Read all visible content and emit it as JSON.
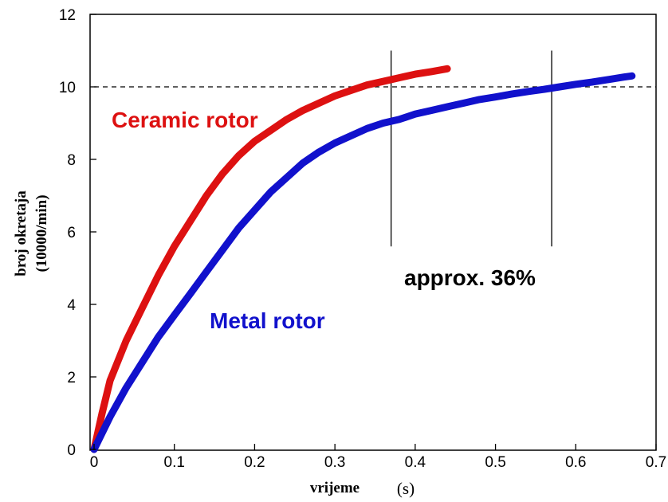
{
  "chart_data": {
    "type": "line",
    "xlabel": "vrijeme",
    "xunit": "(s)",
    "ylabel_lines": [
      "broj okretaja",
      "(10000/min)"
    ],
    "xlim": [
      0,
      0.7
    ],
    "ylim": [
      0,
      12
    ],
    "xticks": [
      0,
      0.1,
      0.2,
      0.3,
      0.4,
      0.5,
      0.6,
      0.7
    ],
    "xtick_labels": [
      "0",
      "0.1",
      "0.2",
      "0.3",
      "0.4",
      "0.5",
      "0.6",
      "0.7"
    ],
    "yticks": [
      0,
      2,
      4,
      6,
      8,
      10,
      12
    ],
    "ytick_labels": [
      "0",
      "2",
      "4",
      "6",
      "8",
      "10",
      "12"
    ],
    "grid": false,
    "reference_line": {
      "y": 10,
      "style": "dashed"
    },
    "marker_lines": [
      {
        "x": 0.37,
        "y_from": 5.6,
        "y_to": 11.0
      },
      {
        "x": 0.57,
        "y_from": 5.6,
        "y_to": 11.0
      }
    ],
    "series": [
      {
        "name": "Ceramic rotor",
        "color": "#dd1111",
        "x": [
          0,
          0.01,
          0.02,
          0.04,
          0.06,
          0.08,
          0.1,
          0.12,
          0.14,
          0.16,
          0.18,
          0.2,
          0.22,
          0.24,
          0.26,
          0.28,
          0.3,
          0.32,
          0.34,
          0.36,
          0.38,
          0.4,
          0.42,
          0.44
        ],
        "y": [
          0,
          1.0,
          1.9,
          3.0,
          3.9,
          4.8,
          5.6,
          6.3,
          7.0,
          7.6,
          8.1,
          8.5,
          8.8,
          9.1,
          9.35,
          9.55,
          9.75,
          9.9,
          10.05,
          10.15,
          10.25,
          10.35,
          10.42,
          10.5
        ]
      },
      {
        "name": "Metal rotor",
        "color": "#1111cc",
        "x": [
          0,
          0.02,
          0.04,
          0.06,
          0.08,
          0.1,
          0.12,
          0.14,
          0.16,
          0.18,
          0.2,
          0.22,
          0.24,
          0.26,
          0.28,
          0.3,
          0.32,
          0.34,
          0.36,
          0.38,
          0.4,
          0.42,
          0.44,
          0.46,
          0.48,
          0.5,
          0.52,
          0.54,
          0.56,
          0.58,
          0.6,
          0.62,
          0.64,
          0.66,
          0.67
        ],
        "y": [
          0,
          0.9,
          1.7,
          2.4,
          3.1,
          3.7,
          4.3,
          4.9,
          5.5,
          6.1,
          6.6,
          7.1,
          7.5,
          7.9,
          8.2,
          8.45,
          8.65,
          8.85,
          9.0,
          9.1,
          9.25,
          9.35,
          9.45,
          9.55,
          9.65,
          9.72,
          9.8,
          9.87,
          9.93,
          10.0,
          10.07,
          10.13,
          10.2,
          10.27,
          10.3
        ]
      }
    ],
    "annotations": [
      {
        "text": "Ceramic rotor",
        "color": "#dd1111"
      },
      {
        "text": "Metal rotor",
        "color": "#1111cc"
      },
      {
        "text": "approx. 36%",
        "color": "#000000"
      }
    ]
  }
}
